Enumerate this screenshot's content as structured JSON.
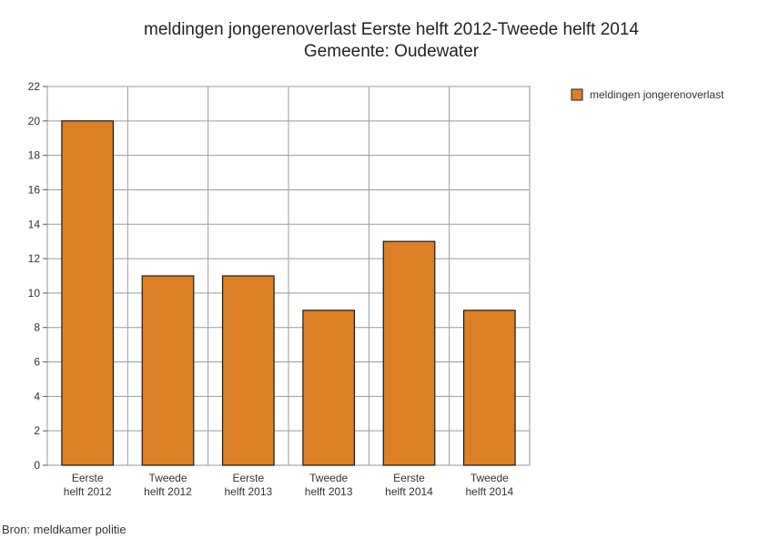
{
  "chart_data": {
    "type": "bar",
    "title_lines": [
      "meldingen jongerenoverlast Eerste helft 2012-Tweede helft 2014",
      "Gemeente: Oudewater"
    ],
    "categories": [
      [
        "Eerste",
        "helft 2012"
      ],
      [
        "Tweede",
        "helft 2012"
      ],
      [
        "Eerste",
        "helft 2013"
      ],
      [
        "Tweede",
        "helft 2013"
      ],
      [
        "Eerste",
        "helft 2014"
      ],
      [
        "Tweede",
        "helft 2014"
      ]
    ],
    "series": [
      {
        "name": "meldingen jongerenoverlast",
        "values": [
          20,
          11,
          11,
          9,
          13,
          9
        ],
        "color": "#dd8025"
      }
    ],
    "ylim": [
      0,
      22
    ],
    "yticks": [
      0,
      2,
      4,
      6,
      8,
      10,
      12,
      14,
      16,
      18,
      20,
      22
    ],
    "grid": true,
    "legend_position": "top-right",
    "xlabel": "",
    "ylabel": ""
  },
  "source": "Bron: meldkamer politie"
}
